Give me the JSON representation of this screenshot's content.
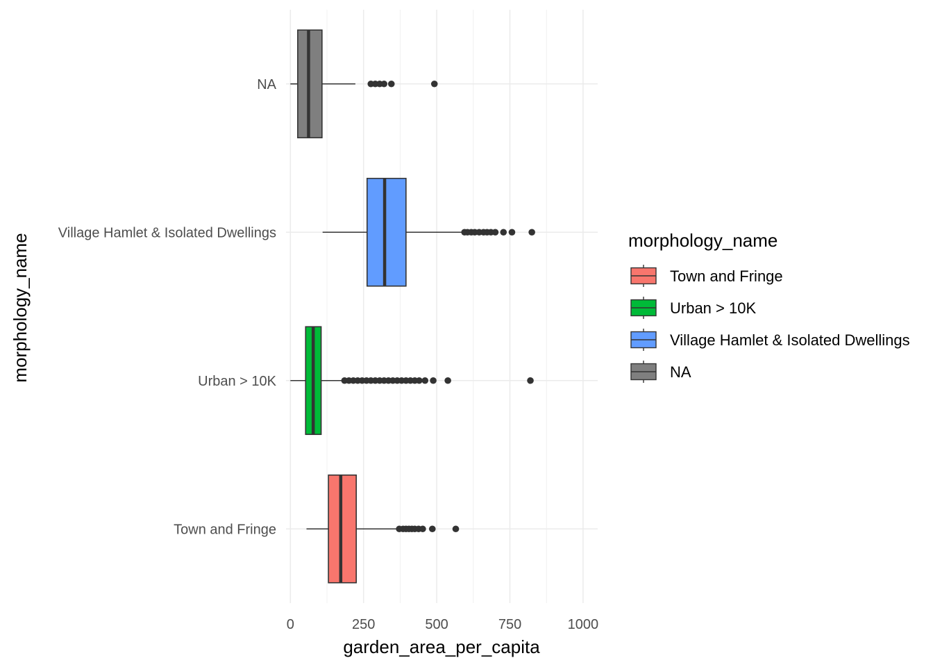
{
  "chart_data": {
    "type": "boxplot",
    "orientation": "horizontal",
    "xlabel": "garden_area_per_capita",
    "ylabel": "morphology_name",
    "xlim": [
      -15,
      1050
    ],
    "x_ticks": [
      0,
      250,
      500,
      750,
      1000
    ],
    "x_tick_labels": [
      "0",
      "250",
      "500",
      "750",
      "1000"
    ],
    "grid": true,
    "legend": {
      "title": "morphology_name",
      "position": "right",
      "entries": [
        "Town and Fringe",
        "Urban > 10K",
        "Village Hamlet & Isolated Dwellings",
        "NA"
      ]
    },
    "series": [
      {
        "name": "Town and Fringe",
        "color": "#F8766D",
        "min": 55,
        "q1": 130,
        "median": 172,
        "q3": 225,
        "max": 365,
        "outliers": [
          372,
          385,
          395,
          405,
          415,
          425,
          438,
          452,
          485,
          565
        ]
      },
      {
        "name": "Urban > 10K",
        "color": "#00BA38",
        "min": 0,
        "q1": 52,
        "median": 78,
        "q3": 105,
        "max": 180,
        "outliers": [
          185,
          200,
          215,
          230,
          245,
          260,
          275,
          290,
          305,
          320,
          335,
          350,
          365,
          380,
          395,
          410,
          425,
          440,
          460,
          488,
          538,
          820
        ]
      },
      {
        "name": "Village Hamlet & Isolated Dwellings",
        "color": "#619CFF",
        "min": 110,
        "q1": 262,
        "median": 322,
        "q3": 395,
        "max": 588,
        "outliers": [
          595,
          605,
          618,
          630,
          645,
          660,
          672,
          685,
          700,
          728,
          757,
          825
        ]
      },
      {
        "name": "NA",
        "color": "#7F7F7F",
        "min": 0,
        "q1": 25,
        "median": 62,
        "q3": 108,
        "max": 222,
        "outliers": [
          275,
          290,
          305,
          320,
          345,
          492
        ]
      }
    ]
  }
}
